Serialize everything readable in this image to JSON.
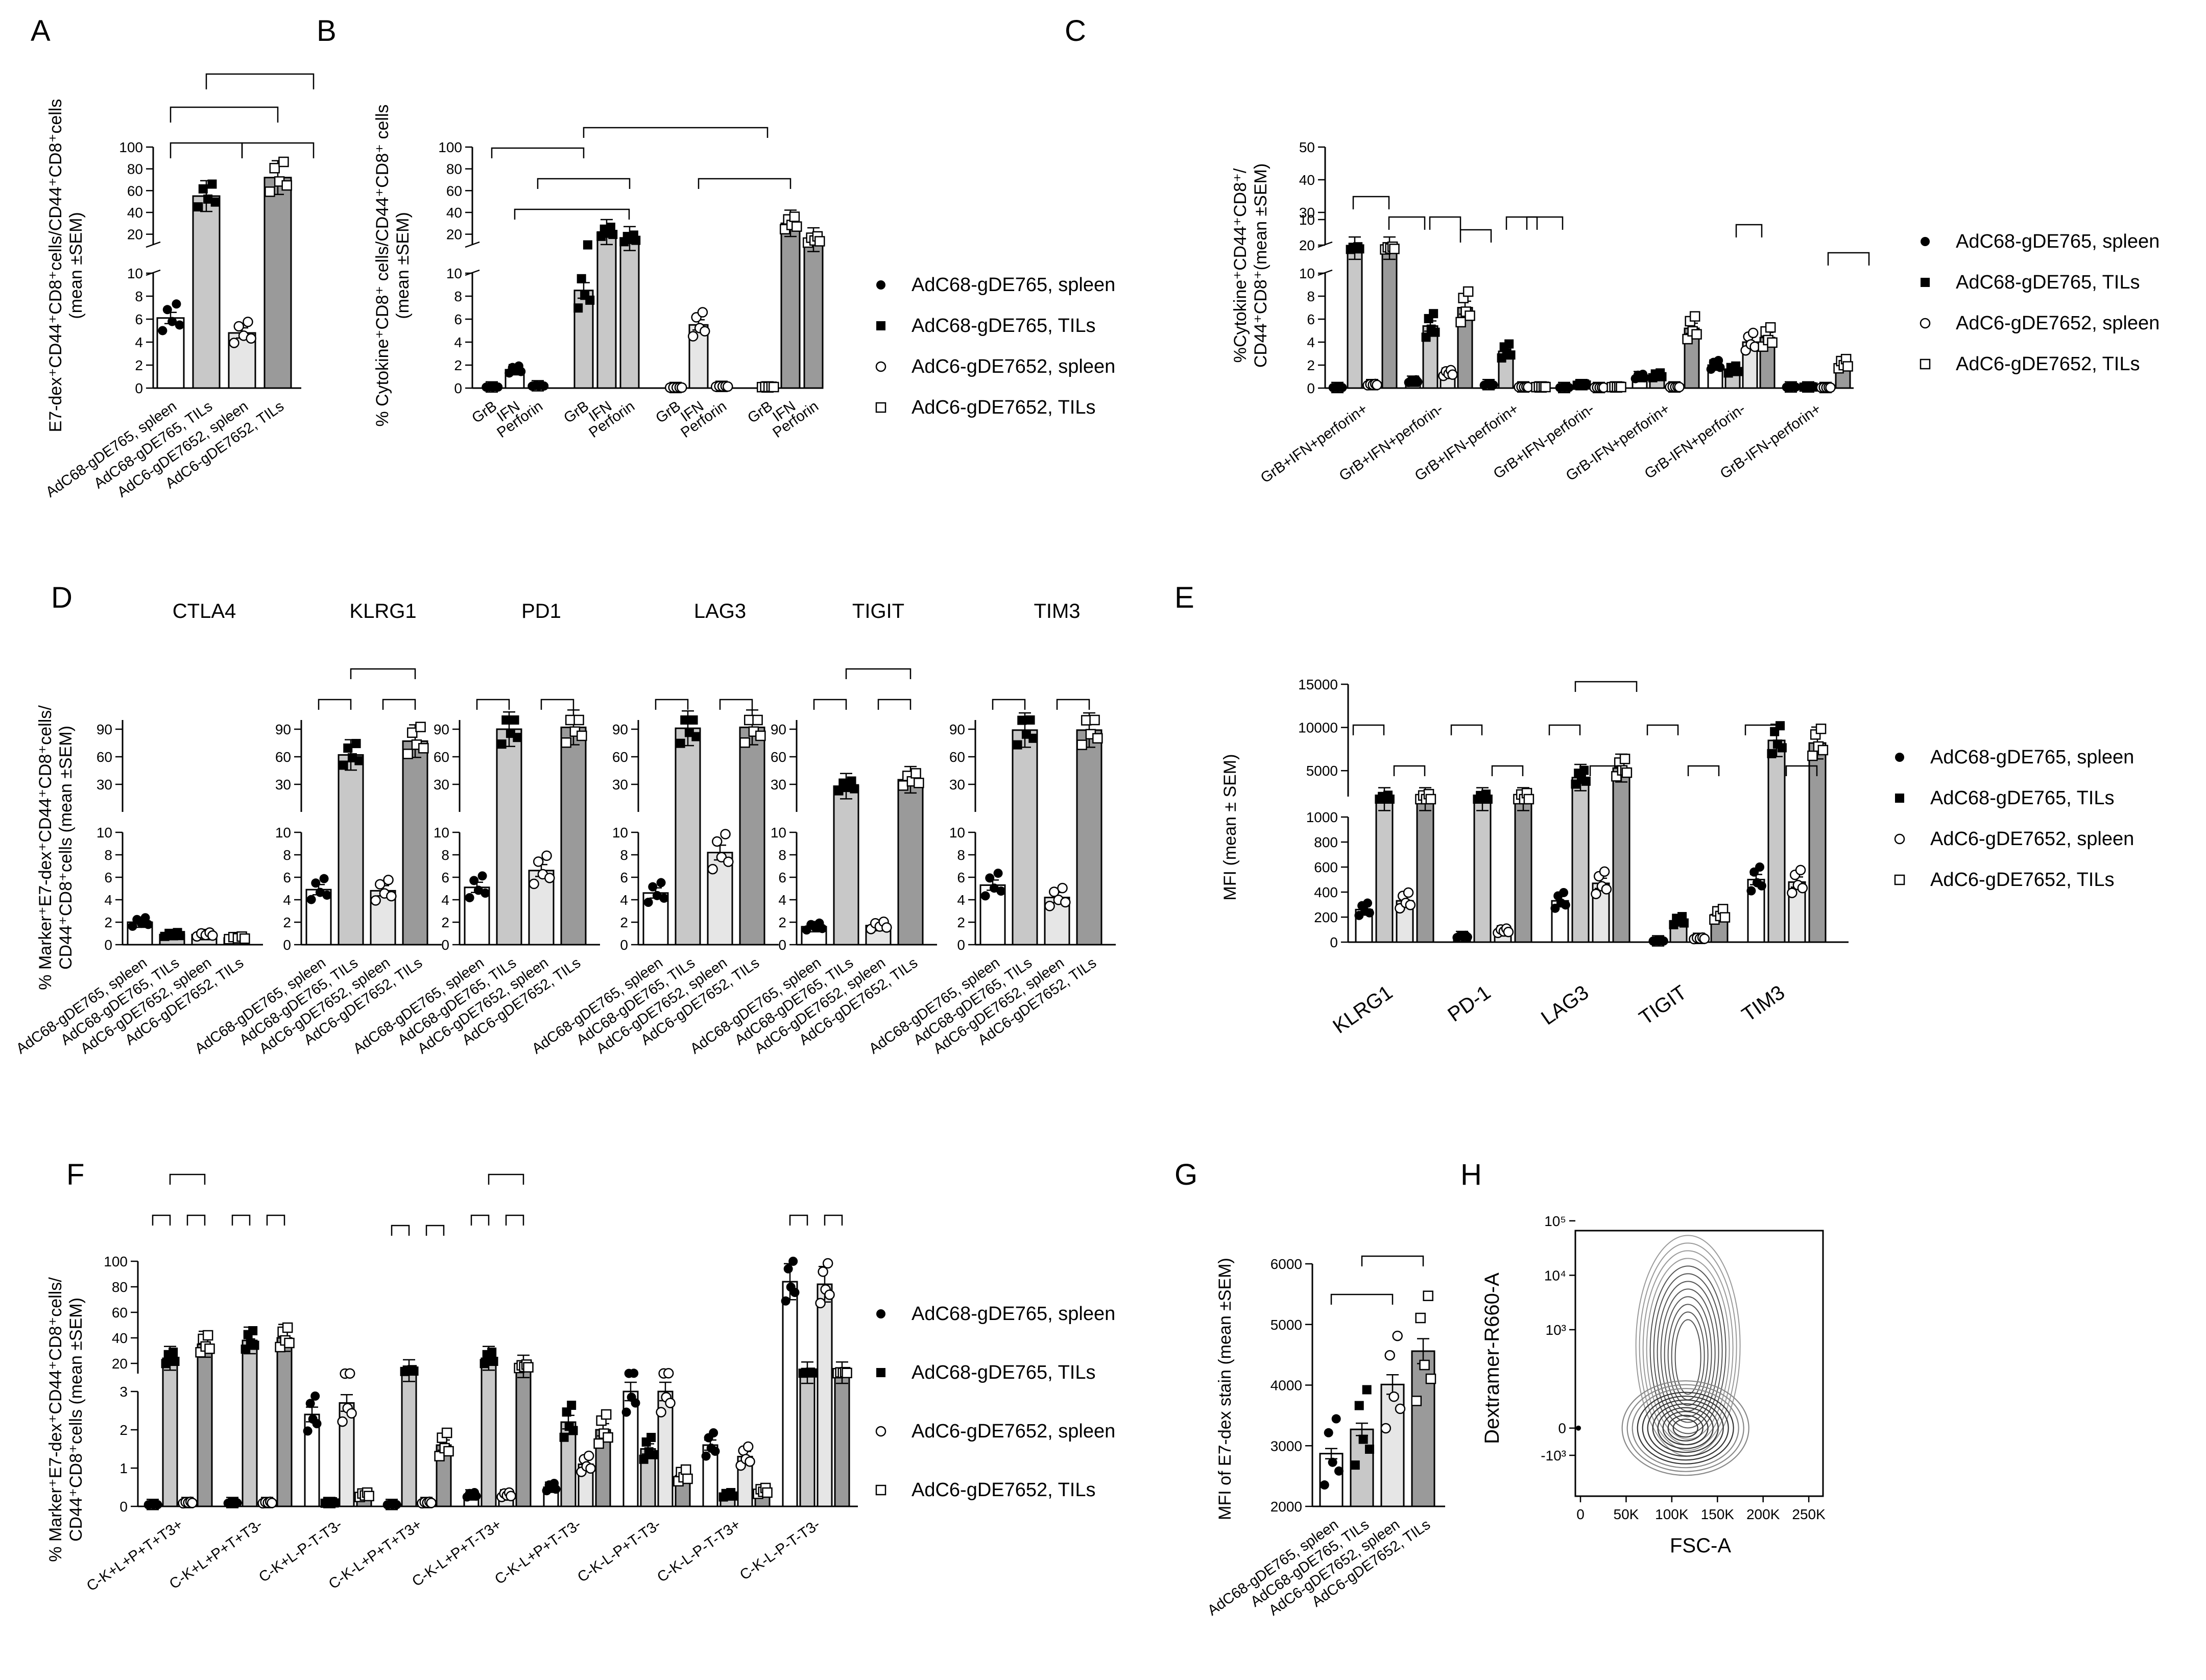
{
  "legend": {
    "series": [
      {
        "name": "AdC68-gDE765, spleen",
        "marker": "dot",
        "fill": "#ffffff"
      },
      {
        "name": "AdC68-gDE765, TILs",
        "marker": "square",
        "fill": "#c8c8c8"
      },
      {
        "name": "AdC6-gDE7652, spleen",
        "marker": "circle",
        "fill": "#e6e6e6"
      },
      {
        "name": "AdC6-gDE7652, TILs",
        "marker": "opensq",
        "fill": "#9a9a9a"
      }
    ]
  },
  "chart_data": [
    {
      "panel": "A",
      "type": "bar",
      "ylabel_lines": [
        "E7-dex⁺CD44⁺CD8⁺cells/CD44⁺CD8⁺cells",
        "(mean ±SEM)"
      ],
      "categories": [
        "AdC68-gDE765, spleen",
        "AdC68-gDE765, TILs",
        "AdC6-gDE7652, spleen",
        "AdC6-gDE7652, TILs"
      ],
      "values": [
        6.1,
        55,
        4.8,
        72
      ],
      "upper_ticks": [
        20,
        40,
        60,
        80,
        100
      ],
      "lower_ticks": [
        0,
        2,
        4,
        6,
        8,
        10
      ]
    },
    {
      "panel": "B",
      "type": "bar",
      "ylabel_lines": [
        "% Cytokine⁺CD8⁺ cells/CD44⁺CD8⁺ cells",
        "(mean ±SEM)"
      ],
      "categories": [
        "GrB",
        "IFN",
        "Perforin"
      ],
      "series": [
        {
          "name": "AdC68-gDE765, spleen",
          "values": [
            0.1,
            1.6,
            0.2
          ]
        },
        {
          "name": "AdC68-gDE765, TILs",
          "values": [
            8.5,
            22,
            16
          ]
        },
        {
          "name": "AdC6-gDE7652, spleen",
          "values": [
            0.05,
            5.5,
            0.15
          ]
        },
        {
          "name": "AdC6-gDE7652, TILs",
          "values": [
            0.1,
            30,
            15
          ]
        }
      ],
      "upper_ticks": [
        20,
        40,
        60,
        80,
        100
      ],
      "lower_ticks": [
        0,
        2,
        4,
        6,
        8,
        10
      ]
    },
    {
      "panel": "C",
      "type": "bar",
      "ylabel_lines": [
        "%Cytokine⁺CD44⁺CD8⁺/",
        "CD44⁺CD8⁺(mean ±SEM)"
      ],
      "categories": [
        "GrB+IFN+perforin+",
        "GrB+IFN+perforin-",
        "GrB+IFN-perforin+",
        "GrB+IFN-perforin-",
        "GrB-IFN+perforin+",
        "GrB-IFN+perforin-",
        "GrB-IFN-perforin+"
      ],
      "series": [
        {
          "name": "AdC68-gDE765, spleen",
          "values": [
            0.05,
            0.6,
            0.3,
            0.05,
            1.0,
            2.0,
            0.1
          ]
        },
        {
          "name": "AdC68-gDE765, TILs",
          "values": [
            14,
            5.4,
            3.2,
            0.3,
            1.1,
            1.6,
            0.1
          ]
        },
        {
          "name": "AdC6-gDE7652, spleen",
          "values": [
            0.3,
            1.3,
            0.1,
            0.05,
            0.1,
            4.0,
            0.05
          ]
        },
        {
          "name": "AdC6-gDE7652, TILs",
          "values": [
            14,
            7.0,
            0.1,
            0.1,
            5.2,
            4.4,
            2.1
          ]
        }
      ],
      "upper_ticks": [
        20,
        30,
        40,
        50
      ],
      "lower_ticks": [
        0,
        2,
        4,
        6,
        8,
        10
      ]
    },
    {
      "panel": "D",
      "type": "bar",
      "ylabel_lines": [
        "% Marker⁺E7-dex⁺CD44⁺CD8⁺cells/",
        "CD44⁺CD8⁺cells (mean ±SEM)"
      ],
      "categories": [
        "AdC68-gDE765, spleen",
        "AdC68-gDE765, TILs",
        "AdC6-gDE7652, spleen",
        "AdC6-gDE7652, TILs"
      ],
      "subplots": [
        {
          "title": "CTLA4",
          "values": [
            2.0,
            0.9,
            0.9,
            0.6
          ]
        },
        {
          "title": "KLRG1",
          "values": [
            4.9,
            62,
            4.8,
            77
          ]
        },
        {
          "title": "PD1",
          "values": [
            5.1,
            90,
            6.6,
            92
          ]
        },
        {
          "title": "LAG3",
          "values": [
            4.6,
            91,
            8.2,
            92
          ]
        },
        {
          "title": "TIGIT",
          "values": [
            1.6,
            28,
            1.7,
            35
          ]
        },
        {
          "title": "TIM3",
          "values": [
            5.3,
            89,
            4.2,
            89
          ]
        }
      ],
      "upper_ticks": [
        30,
        60,
        90
      ],
      "lower_ticks": [
        0,
        2,
        4,
        6,
        8,
        10
      ]
    },
    {
      "panel": "E",
      "type": "bar",
      "ylabel_lines": [
        "MFI (mean ± SEM)"
      ],
      "categories": [
        "KLRG1",
        "PD-1",
        "LAG3",
        "TIGIT",
        "TIM3"
      ],
      "series": [
        {
          "name": "AdC68-gDE765, spleen",
          "values": [
            260,
            45,
            330,
            10,
            500
          ]
        },
        {
          "name": "AdC68-gDE765, TILs",
          "values": [
            1800,
            1900,
            4200,
            170,
            8500
          ]
        },
        {
          "name": "AdC6-gDE7652, spleen",
          "values": [
            330,
            90,
            470,
            30,
            480
          ]
        },
        {
          "name": "AdC6-gDE7652, TILs",
          "values": [
            1900,
            2000,
            5300,
            220,
            8200
          ]
        }
      ],
      "upper_ticks": [
        5000,
        10000,
        15000
      ],
      "lower_ticks": [
        0,
        200,
        400,
        600,
        800,
        1000
      ]
    },
    {
      "panel": "F",
      "type": "bar",
      "ylabel_lines": [
        "% Marker⁺E7-dex⁺CD44⁺CD8⁺cells/",
        "CD44⁺CD8⁺cells (mean ±SEM)"
      ],
      "categories": [
        "C-K+L+P+T+T3+",
        "C-K+L+P+T+T3-",
        "C-K+L-P-T-T3-",
        "C-K-L+P+T+T3+",
        "C-K-L+P+T-T3+",
        "C-K-L+P+T-T3-",
        "C-K-L-P+T-T3-",
        "C-K-L-P-T-T3+",
        "C-K-L-P-T-T3-"
      ],
      "series": [
        {
          "name": "AdC68-gDE765, spleen",
          "values": [
            0.05,
            0.1,
            2.4,
            0.05,
            0.3,
            0.5,
            3.0,
            1.6,
            84
          ]
        },
        {
          "name": "AdC68-gDE765, TILs",
          "values": [
            24,
            38,
            0.1,
            8,
            24,
            2.2,
            1.5,
            0.3,
            4.5
          ]
        },
        {
          "name": "AdC6-gDE7652, spleen",
          "values": [
            0.1,
            0.1,
            2.7,
            0.1,
            0.3,
            1.1,
            3.0,
            1.3,
            82
          ]
        },
        {
          "name": "AdC6-gDE7652, TILs",
          "values": [
            35,
            40,
            0.3,
            1.6,
            15,
            2.0,
            0.8,
            0.4,
            4.5
          ]
        }
      ],
      "upper_ticks": [
        20,
        40,
        60,
        80,
        100
      ],
      "lower_ticks": [
        0,
        1,
        2,
        3
      ]
    },
    {
      "panel": "G",
      "type": "bar",
      "ylabel_lines": [
        "MFI of E7-dex stain (mean ±SEM)"
      ],
      "categories": [
        "AdC68-gDE765, spleen",
        "AdC68-gDE765, TILs",
        "AdC6-gDE7652, spleen",
        "AdC6-gDE7652, TILs"
      ],
      "values": [
        2870,
        3270,
        4010,
        4560
      ],
      "ylim": [
        2000,
        6000
      ],
      "ticks": [
        2000,
        3000,
        4000,
        5000,
        6000
      ]
    },
    {
      "panel": "H",
      "type": "contour",
      "xlabel": "FSC-A",
      "ylabel": "Dextramer-R660-A",
      "x_ticks": [
        "0",
        "50K",
        "100K",
        "150K",
        "200K",
        "250K"
      ],
      "y_ticks": [
        "-10³",
        "0",
        "10³",
        "10⁴",
        "10⁵"
      ],
      "centers": [
        [
          115000,
          0.05
        ],
        [
          120000,
          3.4
        ]
      ]
    }
  ]
}
